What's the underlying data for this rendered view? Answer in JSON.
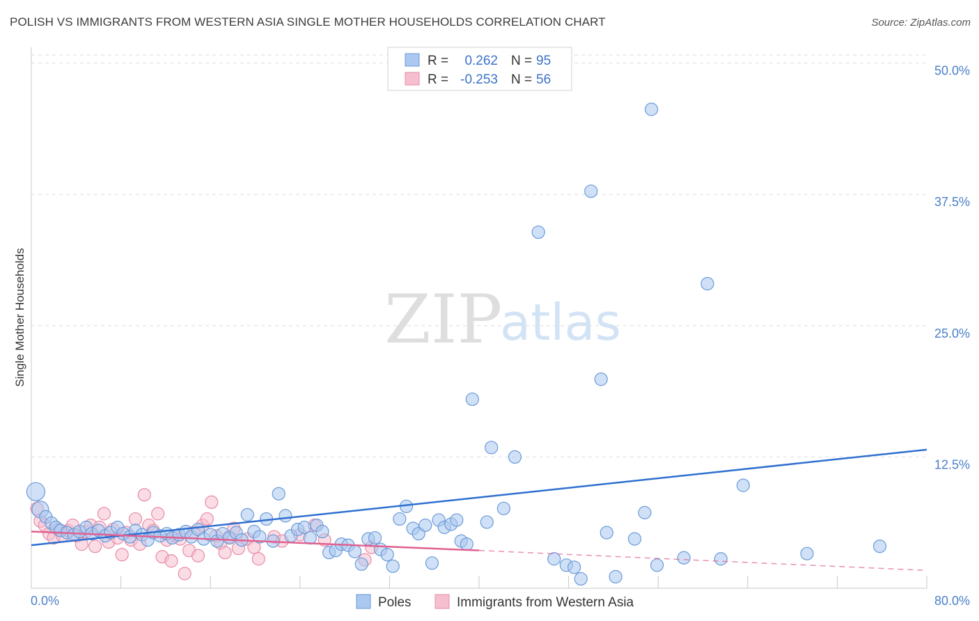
{
  "header": {
    "title": "POLISH VS IMMIGRANTS FROM WESTERN ASIA SINGLE MOTHER HOUSEHOLDS CORRELATION CHART",
    "source": "Source: ZipAtlas.com"
  },
  "watermark": {
    "zip": "ZIP",
    "atlas": "atlas"
  },
  "legend_top": {
    "rows": [
      {
        "r_label": "R =",
        "r_value": "0.262",
        "n_label": "N =",
        "n_value": "95"
      },
      {
        "r_label": "R =",
        "r_value": "-0.253",
        "n_label": "N =",
        "n_value": "56"
      }
    ]
  },
  "legend_bottom": {
    "items": [
      {
        "label": "Poles"
      },
      {
        "label": "Immigrants from Western Asia"
      }
    ]
  },
  "colors": {
    "poles_fill": "#aac8f0",
    "poles_stroke": "#6a9ad8",
    "poles_line": "#2e6fd0",
    "imm_fill": "#f6bfd0",
    "imm_stroke": "#e88aa6",
    "imm_line": "#e06090",
    "tick_text": "#4a7fc8",
    "grid": "#dddddd"
  },
  "chart_data": {
    "type": "scatter",
    "title": "POLISH VS IMMIGRANTS FROM WESTERN ASIA SINGLE MOTHER HOUSEHOLDS CORRELATION CHART",
    "xlabel": "",
    "ylabel": "Single Mother Households",
    "xlim": [
      0,
      80
    ],
    "ylim": [
      0,
      51.5
    ],
    "x_tick_labels": [
      "0.0%",
      "80.0%"
    ],
    "y_ticks": [
      12.5,
      25.0,
      37.5,
      50.0
    ],
    "y_tick_labels": [
      "12.5%",
      "25.0%",
      "37.5%",
      "50.0%"
    ],
    "grid": "horizontal-dashed",
    "legend_placement": "top-center",
    "series": [
      {
        "name": "Poles",
        "points": [
          [
            0.4,
            9.2
          ],
          [
            0.8,
            7.5
          ],
          [
            1.3,
            6.8
          ],
          [
            1.8,
            6.2
          ],
          [
            2.2,
            5.8
          ],
          [
            2.6,
            5.5
          ],
          [
            3.2,
            5.3
          ],
          [
            3.8,
            5.1
          ],
          [
            4.3,
            5.4
          ],
          [
            4.9,
            5.8
          ],
          [
            5.4,
            5.2
          ],
          [
            6.0,
            5.5
          ],
          [
            6.6,
            5.0
          ],
          [
            7.1,
            5.3
          ],
          [
            7.7,
            5.8
          ],
          [
            8.2,
            5.2
          ],
          [
            8.8,
            4.9
          ],
          [
            9.3,
            5.5
          ],
          [
            9.9,
            5.1
          ],
          [
            10.4,
            4.6
          ],
          [
            10.9,
            5.3
          ],
          [
            11.5,
            5.0
          ],
          [
            12.1,
            5.2
          ],
          [
            12.6,
            4.8
          ],
          [
            13.2,
            5.1
          ],
          [
            13.8,
            5.4
          ],
          [
            14.3,
            4.9
          ],
          [
            14.9,
            5.6
          ],
          [
            15.4,
            4.7
          ],
          [
            16.0,
            5.1
          ],
          [
            16.6,
            4.5
          ],
          [
            17.1,
            5.2
          ],
          [
            17.7,
            4.8
          ],
          [
            18.3,
            5.3
          ],
          [
            18.8,
            4.6
          ],
          [
            19.3,
            7.0
          ],
          [
            19.9,
            5.4
          ],
          [
            20.4,
            4.9
          ],
          [
            21.0,
            6.6
          ],
          [
            21.6,
            4.5
          ],
          [
            22.1,
            9.0
          ],
          [
            22.7,
            6.9
          ],
          [
            23.2,
            5.0
          ],
          [
            23.8,
            5.6
          ],
          [
            24.4,
            5.8
          ],
          [
            24.9,
            4.8
          ],
          [
            25.5,
            6.0
          ],
          [
            26.0,
            5.4
          ],
          [
            26.6,
            3.4
          ],
          [
            27.2,
            3.6
          ],
          [
            27.7,
            4.2
          ],
          [
            28.3,
            4.1
          ],
          [
            28.9,
            3.5
          ],
          [
            29.5,
            2.3
          ],
          [
            30.1,
            4.7
          ],
          [
            30.7,
            4.8
          ],
          [
            31.2,
            3.7
          ],
          [
            31.8,
            3.2
          ],
          [
            32.3,
            2.1
          ],
          [
            32.9,
            6.6
          ],
          [
            33.5,
            7.8
          ],
          [
            34.1,
            5.7
          ],
          [
            34.6,
            5.2
          ],
          [
            35.2,
            6.0
          ],
          [
            35.8,
            2.4
          ],
          [
            36.4,
            6.5
          ],
          [
            36.9,
            5.8
          ],
          [
            37.5,
            6.1
          ],
          [
            38.0,
            6.5
          ],
          [
            38.4,
            4.5
          ],
          [
            38.9,
            4.2
          ],
          [
            39.4,
            18.0
          ],
          [
            40.7,
            6.3
          ],
          [
            41.1,
            13.4
          ],
          [
            42.2,
            7.6
          ],
          [
            43.2,
            12.5
          ],
          [
            46.7,
            2.8
          ],
          [
            47.8,
            2.2
          ],
          [
            48.5,
            2.0
          ],
          [
            49.1,
            0.9
          ],
          [
            50.0,
            37.8
          ],
          [
            50.9,
            19.9
          ],
          [
            51.4,
            5.3
          ],
          [
            52.2,
            1.1
          ],
          [
            53.9,
            4.7
          ],
          [
            54.8,
            7.2
          ],
          [
            55.4,
            45.6
          ],
          [
            58.3,
            2.9
          ],
          [
            60.4,
            29.0
          ],
          [
            61.6,
            2.8
          ],
          [
            63.6,
            9.8
          ],
          [
            69.3,
            3.3
          ],
          [
            75.8,
            4.0
          ],
          [
            45.3,
            33.9
          ],
          [
            55.9,
            2.2
          ]
        ]
      },
      {
        "name": "Immigrants from Western Asia",
        "points": [
          [
            0.5,
            7.6
          ],
          [
            0.8,
            6.4
          ],
          [
            1.2,
            6.0
          ],
          [
            1.6,
            5.2
          ],
          [
            2.0,
            4.8
          ],
          [
            2.4,
            5.6
          ],
          [
            2.8,
            5.0
          ],
          [
            3.3,
            5.5
          ],
          [
            3.7,
            6.0
          ],
          [
            4.1,
            5.0
          ],
          [
            4.5,
            4.2
          ],
          [
            4.9,
            5.4
          ],
          [
            5.3,
            6.0
          ],
          [
            5.7,
            4.0
          ],
          [
            6.1,
            5.8
          ],
          [
            6.5,
            7.1
          ],
          [
            6.9,
            4.4
          ],
          [
            7.3,
            5.6
          ],
          [
            7.7,
            4.8
          ],
          [
            8.1,
            3.2
          ],
          [
            8.5,
            5.3
          ],
          [
            8.9,
            4.6
          ],
          [
            9.3,
            6.6
          ],
          [
            9.7,
            4.2
          ],
          [
            10.1,
            8.9
          ],
          [
            10.5,
            6.0
          ],
          [
            10.9,
            5.5
          ],
          [
            11.3,
            7.1
          ],
          [
            11.7,
            3.0
          ],
          [
            12.1,
            4.6
          ],
          [
            12.5,
            2.6
          ],
          [
            12.9,
            5.0
          ],
          [
            13.3,
            4.7
          ],
          [
            13.7,
            1.4
          ],
          [
            14.1,
            3.6
          ],
          [
            14.5,
            5.3
          ],
          [
            14.9,
            3.1
          ],
          [
            15.3,
            6.0
          ],
          [
            15.7,
            6.6
          ],
          [
            16.1,
            8.2
          ],
          [
            16.5,
            5.0
          ],
          [
            16.9,
            4.3
          ],
          [
            17.3,
            3.4
          ],
          [
            17.7,
            4.9
          ],
          [
            18.1,
            5.7
          ],
          [
            18.5,
            3.8
          ],
          [
            19.3,
            4.7
          ],
          [
            19.9,
            3.9
          ],
          [
            20.3,
            2.8
          ],
          [
            21.7,
            4.9
          ],
          [
            22.4,
            4.5
          ],
          [
            24.0,
            5.1
          ],
          [
            25.3,
            6.0
          ],
          [
            26.2,
            4.6
          ],
          [
            29.8,
            2.7
          ],
          [
            30.4,
            3.9
          ]
        ]
      }
    ],
    "trend_lines": [
      {
        "name": "Poles",
        "x": [
          0,
          80
        ],
        "y": [
          4.1,
          13.2
        ]
      },
      {
        "name": "Immigrants from Western Asia",
        "x": [
          0,
          40
        ],
        "y": [
          5.4,
          3.6
        ],
        "dashed_x": [
          40,
          80
        ],
        "dashed_y": [
          3.6,
          1.7
        ]
      }
    ]
  }
}
